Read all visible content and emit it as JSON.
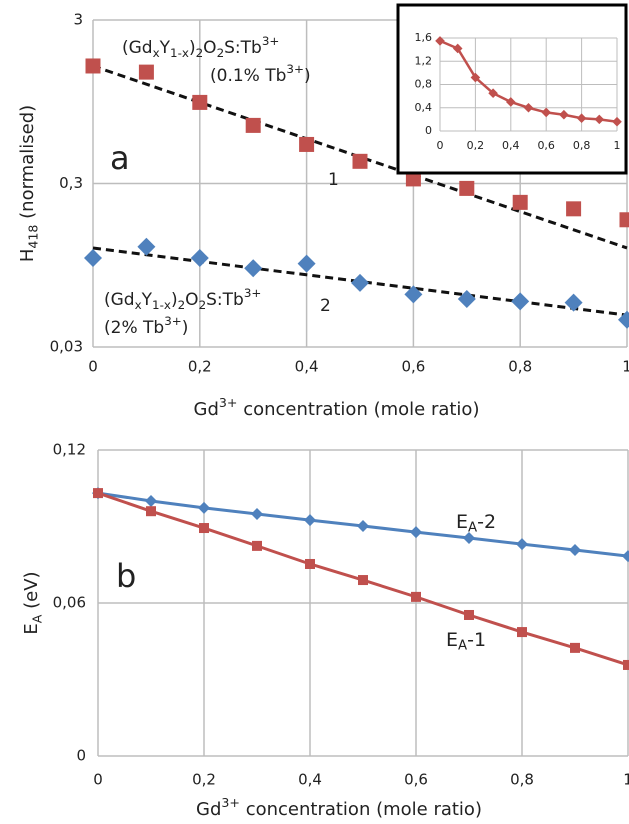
{
  "chart_data": [
    {
      "type": "scatter",
      "panel_label": "a",
      "y_scale": "log",
      "grid": true,
      "ylabel": [
        {
          "text": "H"
        },
        {
          "text": "418",
          "shift": "sub"
        },
        {
          "text": " (normalised)"
        }
      ],
      "xlabel": [
        {
          "text": "Gd"
        },
        {
          "text": "3+",
          "shift": "sup"
        },
        {
          "text": " concentration (mole ratio)"
        }
      ],
      "xlim": [
        0,
        1
      ],
      "xticks": [
        0,
        {
          "value": 0.2,
          "label": "0,2"
        },
        {
          "value": 0.4,
          "label": "0,4"
        },
        {
          "value": 0.6,
          "label": "0,6"
        },
        {
          "value": 0.8,
          "label": "0,8"
        },
        1
      ],
      "ylim": [
        0.03,
        3
      ],
      "yticks": [
        {
          "value": 0.03,
          "label": "0,03"
        },
        {
          "value": 0.3,
          "label": "0,3"
        },
        3
      ],
      "x": [
        0,
        0.1,
        0.2,
        0.3,
        0.4,
        0.5,
        0.6,
        0.7,
        0.8,
        0.9,
        1
      ],
      "series": [
        {
          "marker": "square",
          "color": "#c0504d",
          "values": [
            1.57,
            1.44,
            0.94,
            0.68,
            0.52,
            0.41,
            0.32,
            0.28,
            0.23,
            0.21,
            0.18
          ],
          "trend": {
            "x": [
              0,
              1
            ],
            "values": [
              1.57,
              0.121
            ]
          }
        },
        {
          "marker": "diamond",
          "color": "#4f81bd",
          "values": [
            0.105,
            0.123,
            0.105,
            0.091,
            0.097,
            0.074,
            0.063,
            0.059,
            0.057,
            0.056,
            0.044
          ],
          "trend": {
            "x": [
              0,
              1
            ],
            "values": [
              0.121,
              0.047
            ]
          }
        }
      ],
      "annotations": [
        [
          {
            "text": "(Gd"
          },
          {
            "text": "x",
            "shift": "sub"
          },
          {
            "text": "Y"
          },
          {
            "text": "1-x",
            "shift": "sub"
          },
          {
            "text": ")"
          },
          {
            "text": "2",
            "shift": "sub"
          },
          {
            "text": "O"
          },
          {
            "text": "2",
            "shift": "sub"
          },
          {
            "text": "S:Tb"
          },
          {
            "text": "3+",
            "shift": "sup"
          }
        ],
        [
          {
            "text": "(0.1% Tb"
          },
          {
            "text": "3+",
            "shift": "sup"
          },
          {
            "text": ")"
          }
        ],
        [
          {
            "text": "1"
          }
        ],
        [
          {
            "text": "(Gd"
          },
          {
            "text": "x",
            "shift": "sub"
          },
          {
            "text": "Y"
          },
          {
            "text": "1-x",
            "shift": "sub"
          },
          {
            "text": ")"
          },
          {
            "text": "2",
            "shift": "sub"
          },
          {
            "text": "O"
          },
          {
            "text": "2",
            "shift": "sub"
          },
          {
            "text": "S:Tb"
          },
          {
            "text": "3+",
            "shift": "sup"
          }
        ],
        [
          {
            "text": "(2% Tb"
          },
          {
            "text": "3+",
            "shift": "sup"
          },
          {
            "text": ")"
          }
        ],
        [
          {
            "text": "2"
          }
        ]
      ]
    },
    {
      "type": "line",
      "grid": true,
      "xlim": [
        0,
        1
      ],
      "xticks": [
        0,
        {
          "value": 0.2,
          "label": "0,2"
        },
        {
          "value": 0.4,
          "label": "0,4"
        },
        {
          "value": 0.6,
          "label": "0,6"
        },
        {
          "value": 0.8,
          "label": "0,8"
        },
        1
      ],
      "ylim": [
        0,
        1.6
      ],
      "yticks": [
        0,
        {
          "value": 0.4,
          "label": "0,4"
        },
        {
          "value": 0.8,
          "label": "0,8"
        },
        {
          "value": 1.2,
          "label": "1,2"
        },
        {
          "value": 1.6,
          "label": "1,6"
        }
      ],
      "x": [
        0,
        0.1,
        0.2,
        0.3,
        0.4,
        0.5,
        0.6,
        0.7,
        0.8,
        0.9,
        1
      ],
      "series": [
        {
          "marker": "diamond",
          "color": "#c0504d",
          "values": [
            1.55,
            1.42,
            0.92,
            0.65,
            0.5,
            0.4,
            0.32,
            0.28,
            0.22,
            0.2,
            0.16
          ]
        }
      ]
    },
    {
      "type": "line",
      "panel_label": "b",
      "grid": true,
      "ylabel": [
        {
          "text": "E"
        },
        {
          "text": "A",
          "shift": "sub"
        },
        {
          "text": " (eV)"
        }
      ],
      "xlabel": [
        {
          "text": "Gd"
        },
        {
          "text": "3+",
          "shift": "sup"
        },
        {
          "text": " concentration (mole ratio)"
        }
      ],
      "xlim": [
        0,
        1
      ],
      "xticks": [
        0,
        {
          "value": 0.2,
          "label": "0,2"
        },
        {
          "value": 0.4,
          "label": "0,4"
        },
        {
          "value": 0.6,
          "label": "0,6"
        },
        {
          "value": 0.8,
          "label": "0,8"
        },
        1
      ],
      "ylim": [
        0,
        0.12
      ],
      "yticks": [
        0,
        {
          "value": 0.06,
          "label": "0,06"
        },
        {
          "value": 0.12,
          "label": "0,12"
        }
      ],
      "x": [
        0,
        0.1,
        0.2,
        0.3,
        0.4,
        0.5,
        0.6,
        0.7,
        0.8,
        0.9,
        1
      ],
      "series": [
        {
          "label": [
            {
              "text": "E"
            },
            {
              "text": "A",
              "shift": "sub"
            },
            {
              "text": "-2"
            }
          ],
          "marker": "diamond",
          "color": "#4f81bd",
          "values": [
            0.1031,
            0.1,
            0.0973,
            0.0949,
            0.0925,
            0.0902,
            0.0878,
            0.0855,
            0.0831,
            0.0808,
            0.0784
          ]
        },
        {
          "label": [
            {
              "text": "E"
            },
            {
              "text": "A",
              "shift": "sub"
            },
            {
              "text": "-1"
            }
          ],
          "marker": "square",
          "color": "#c0504d",
          "values": [
            0.1031,
            0.096,
            0.0894,
            0.0824,
            0.0753,
            0.069,
            0.0624,
            0.0553,
            0.0486,
            0.0424,
            0.0357
          ]
        }
      ]
    }
  ]
}
